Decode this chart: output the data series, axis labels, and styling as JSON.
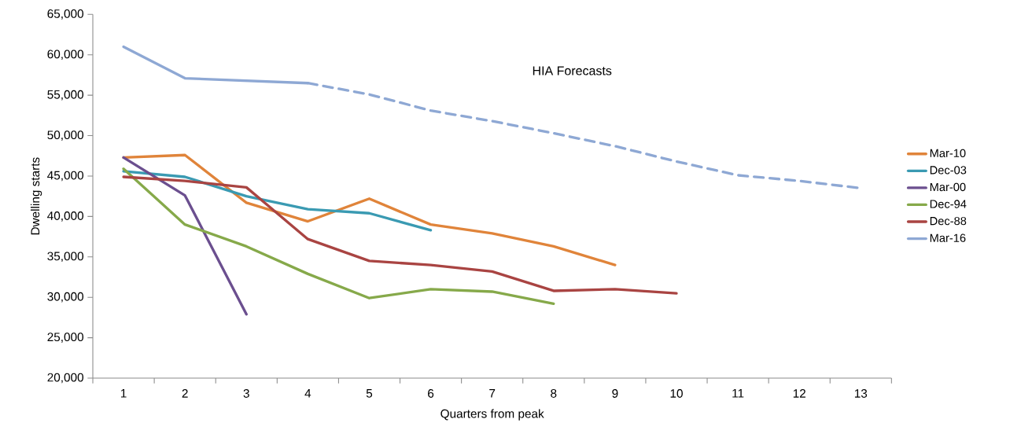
{
  "chart_data": {
    "type": "line",
    "xlabel": "Quarters from peak",
    "ylabel": "Dwelling starts",
    "categories": [
      "1",
      "2",
      "3",
      "4",
      "5",
      "6",
      "7",
      "8",
      "9",
      "10",
      "11",
      "12",
      "13"
    ],
    "series": [
      {
        "name": "Mar-10",
        "color": "#e0843a",
        "values": [
          47300,
          47600,
          41700,
          39400,
          42200,
          39000,
          37900,
          36300,
          34000,
          null,
          null,
          null,
          null
        ]
      },
      {
        "name": "Dec-03",
        "color": "#3a9ab2",
        "values": [
          45600,
          44900,
          42500,
          40900,
          40400,
          38300,
          null,
          null,
          null,
          null,
          null,
          null,
          null
        ]
      },
      {
        "name": "Mar-00",
        "color": "#6b4f8f",
        "values": [
          47300,
          42600,
          27900,
          null,
          null,
          null,
          null,
          null,
          null,
          null,
          null,
          null,
          null
        ]
      },
      {
        "name": "Dec-94",
        "color": "#86a94a",
        "values": [
          45900,
          39000,
          36300,
          32900,
          29900,
          31000,
          30700,
          29200,
          null,
          null,
          null,
          null,
          null
        ]
      },
      {
        "name": "Dec-88",
        "color": "#a94442",
        "values": [
          44900,
          44400,
          43600,
          37200,
          34500,
          34000,
          33200,
          30800,
          31000,
          30500,
          null,
          null,
          null
        ]
      },
      {
        "name": "Mar-16",
        "color": "#8ea8d4",
        "values": [
          61000,
          57100,
          56800,
          56500,
          null,
          null,
          null,
          null,
          null,
          null,
          null,
          null,
          null
        ]
      },
      {
        "color": "#8ea8d4",
        "line_style": "dashed",
        "values": [
          null,
          null,
          null,
          56500,
          55100,
          53100,
          51800,
          50300,
          48700,
          46800,
          45100,
          44400,
          43500
        ]
      }
    ],
    "ylim": [
      20000,
      65000
    ],
    "yticks": [
      {
        "value": 20000,
        "label": "20,000"
      },
      {
        "value": 25000,
        "label": "25,000"
      },
      {
        "value": 30000,
        "label": "30,000"
      },
      {
        "value": 35000,
        "label": "35,000"
      },
      {
        "value": 40000,
        "label": "40,000"
      },
      {
        "value": 45000,
        "label": "45,000"
      },
      {
        "value": 50000,
        "label": "50,000"
      },
      {
        "value": 55000,
        "label": "55,000"
      },
      {
        "value": 60000,
        "label": "60,000"
      },
      {
        "value": 65000,
        "label": "65,000"
      }
    ],
    "annotations": [
      "HIA Forecasts"
    ],
    "grid": false,
    "legend": "right",
    "marker": "none",
    "line_style": "solid"
  }
}
